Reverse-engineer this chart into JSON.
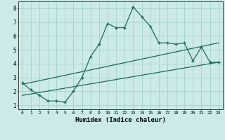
{
  "xlabel": "Humidex (Indice chaleur)",
  "bg_color": "#cceae7",
  "grid_color": "#aad4d0",
  "line_color": "#1a6b5e",
  "xlim": [
    -0.5,
    23.5
  ],
  "ylim": [
    0.7,
    8.5
  ],
  "xticks": [
    0,
    1,
    2,
    3,
    4,
    5,
    6,
    7,
    8,
    9,
    10,
    11,
    12,
    13,
    14,
    15,
    16,
    17,
    18,
    19,
    20,
    21,
    22,
    23
  ],
  "yticks": [
    1,
    2,
    3,
    4,
    5,
    6,
    7,
    8
  ],
  "series1_x": [
    0,
    1,
    2,
    3,
    4,
    5,
    6,
    7,
    8,
    9,
    10,
    11,
    12,
    13,
    14,
    15,
    16,
    17,
    18,
    19,
    20,
    21,
    22,
    23
  ],
  "series1_y": [
    2.6,
    2.1,
    1.7,
    1.3,
    1.3,
    1.2,
    2.0,
    3.0,
    4.5,
    5.4,
    6.9,
    6.6,
    6.6,
    8.1,
    7.4,
    6.7,
    5.5,
    5.5,
    5.4,
    5.5,
    4.2,
    5.2,
    4.1,
    4.1
  ],
  "series2_x": [
    0,
    23
  ],
  "series2_y": [
    2.5,
    5.5
  ],
  "series3_x": [
    0,
    23
  ],
  "series3_y": [
    1.7,
    4.1
  ]
}
